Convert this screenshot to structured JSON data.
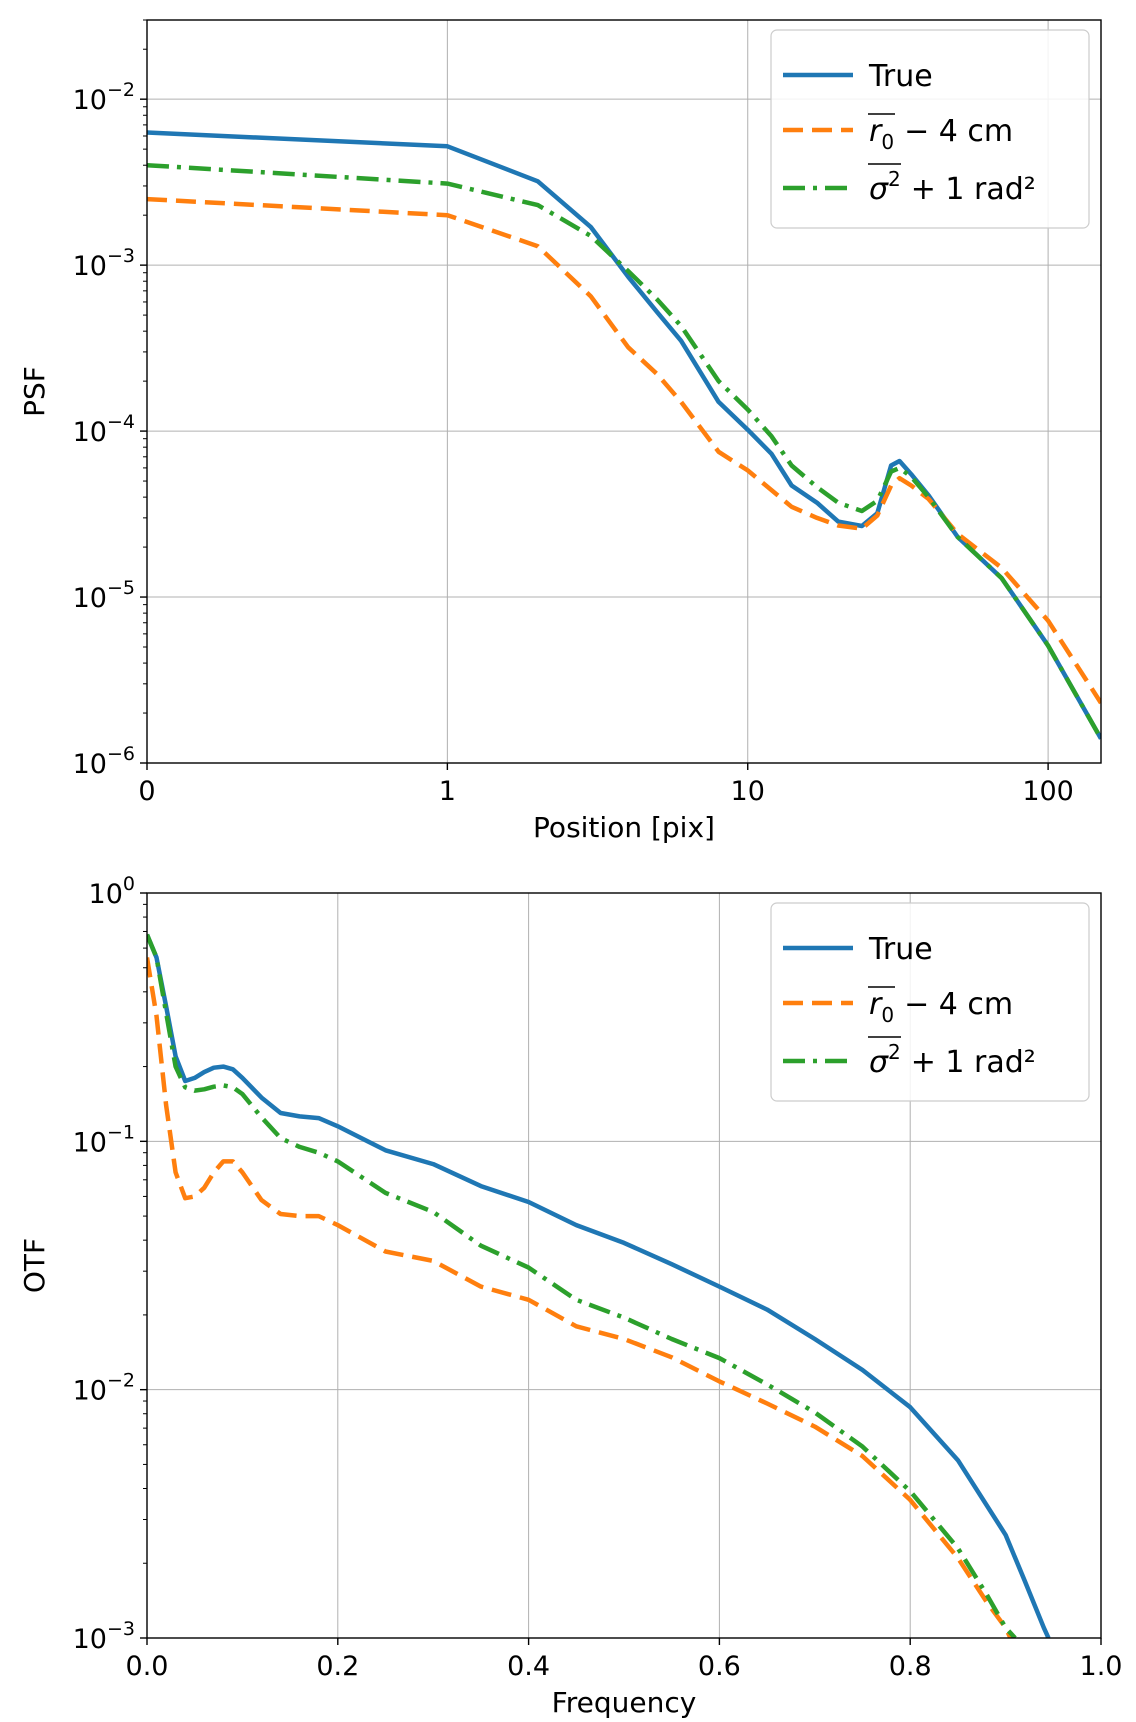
{
  "chart_data": [
    {
      "type": "line",
      "xscale": "symlog",
      "yscale": "log",
      "xlabel": "Position [pix]",
      "ylabel": "PSF",
      "xlim": [
        0,
        150
      ],
      "ylim": [
        1e-06,
        0.03
      ],
      "xticks": [
        {
          "value": 0,
          "label": "0"
        },
        {
          "value": 1,
          "label": "1"
        },
        {
          "value": 10,
          "label": "10"
        },
        {
          "value": 100,
          "label": "100"
        }
      ],
      "yticks": [
        {
          "value": 1e-06,
          "base": "10",
          "exp": "−6"
        },
        {
          "value": 1e-05,
          "base": "10",
          "exp": "−5"
        },
        {
          "value": 0.0001,
          "base": "10",
          "exp": "−4"
        },
        {
          "value": 0.001,
          "base": "10",
          "exp": "−3"
        },
        {
          "value": 0.01,
          "base": "10",
          "exp": "−2"
        }
      ],
      "grid": true,
      "legend_position": "top-right",
      "series": [
        {
          "name": "True",
          "color": "#1f77b4",
          "dash": "solid",
          "x": [
            0,
            1,
            2,
            3,
            4,
            5,
            6,
            8,
            10,
            12,
            14,
            17,
            20,
            24,
            27,
            30,
            32,
            35,
            40,
            50,
            70,
            100,
            150
          ],
          "y": [
            0.0063,
            0.0052,
            0.0032,
            0.0017,
            0.00085,
            0.00052,
            0.00035,
            0.00015,
            0.000102,
            7.3e-05,
            4.7e-05,
            3.7e-05,
            2.85e-05,
            2.68e-05,
            3.2e-05,
            6.2e-05,
            6.6e-05,
            5.5e-05,
            4.1e-05,
            2.3e-05,
            1.3e-05,
            5.1e-06,
            1.4e-06
          ]
        },
        {
          "name": "r0-4cm",
          "color": "#ff7f0e",
          "dash": "dashed",
          "x": [
            0,
            1,
            2,
            3,
            4,
            5,
            6,
            8,
            10,
            14,
            17,
            20,
            24,
            27,
            30,
            32,
            35,
            40,
            50,
            70,
            100,
            150
          ],
          "y": [
            0.0025,
            0.002,
            0.0013,
            0.00065,
            0.00032,
            0.00022,
            0.00015,
            7.5e-05,
            5.8e-05,
            3.5e-05,
            3e-05,
            2.7e-05,
            2.58e-05,
            3.1e-05,
            4.7e-05,
            5.2e-05,
            4.7e-05,
            3.9e-05,
            2.4e-05,
            1.5e-05,
            7.2e-06,
            2.3e-06
          ]
        },
        {
          "name": "sigma2+1rad2",
          "color": "#2ca02c",
          "dash": "dashdot",
          "x": [
            0,
            1,
            2,
            3,
            4,
            5,
            6,
            8,
            10,
            12,
            14,
            17,
            20,
            24,
            27,
            30,
            32,
            35,
            40,
            50,
            70,
            100,
            150
          ],
          "y": [
            0.004,
            0.0031,
            0.0023,
            0.0015,
            0.00092,
            0.00062,
            0.00043,
            0.0002,
            0.000135,
            9.3e-05,
            6.2e-05,
            4.6e-05,
            3.7e-05,
            3.3e-05,
            3.8e-05,
            5.7e-05,
            6e-05,
            5.3e-05,
            4e-05,
            2.3e-05,
            1.3e-05,
            5.1e-06,
            1.4e-06
          ]
        }
      ]
    },
    {
      "type": "line",
      "xscale": "linear",
      "yscale": "log",
      "xlabel": "Frequency",
      "ylabel": "OTF",
      "xlim": [
        0,
        1
      ],
      "ylim": [
        0.001,
        1
      ],
      "xticks": [
        {
          "value": 0,
          "label": "0.0"
        },
        {
          "value": 0.2,
          "label": "0.2"
        },
        {
          "value": 0.4,
          "label": "0.4"
        },
        {
          "value": 0.6,
          "label": "0.6"
        },
        {
          "value": 0.8,
          "label": "0.8"
        },
        {
          "value": 1,
          "label": "1.0"
        }
      ],
      "yticks": [
        {
          "value": 0.001,
          "base": "10",
          "exp": "−3"
        },
        {
          "value": 0.01,
          "base": "10",
          "exp": "−2"
        },
        {
          "value": 0.1,
          "base": "10",
          "exp": "−1"
        },
        {
          "value": 1,
          "base": "10",
          "exp": "0"
        }
      ],
      "grid": true,
      "legend_position": "top-right",
      "series": [
        {
          "name": "True",
          "color": "#1f77b4",
          "dash": "solid",
          "x": [
            0,
            0.01,
            0.02,
            0.03,
            0.04,
            0.05,
            0.06,
            0.07,
            0.08,
            0.09,
            0.1,
            0.12,
            0.14,
            0.16,
            0.18,
            0.2,
            0.25,
            0.3,
            0.35,
            0.4,
            0.45,
            0.5,
            0.55,
            0.6,
            0.65,
            0.7,
            0.75,
            0.8,
            0.85,
            0.9,
            0.92,
            0.94,
            0.945
          ],
          "y": [
            0.68,
            0.55,
            0.35,
            0.22,
            0.175,
            0.18,
            0.19,
            0.198,
            0.2,
            0.195,
            0.18,
            0.15,
            0.13,
            0.126,
            0.124,
            0.115,
            0.092,
            0.081,
            0.066,
            0.057,
            0.046,
            0.039,
            0.032,
            0.026,
            0.021,
            0.016,
            0.012,
            0.0085,
            0.0052,
            0.0026,
            0.0017,
            0.0011,
            0.001
          ]
        },
        {
          "name": "r0-4cm",
          "color": "#ff7f0e",
          "dash": "dashed",
          "x": [
            0,
            0.01,
            0.02,
            0.03,
            0.04,
            0.05,
            0.06,
            0.07,
            0.08,
            0.09,
            0.1,
            0.12,
            0.14,
            0.16,
            0.18,
            0.2,
            0.25,
            0.3,
            0.35,
            0.4,
            0.45,
            0.5,
            0.55,
            0.6,
            0.65,
            0.7,
            0.75,
            0.8,
            0.85,
            0.88,
            0.9,
            0.905
          ],
          "y": [
            0.55,
            0.32,
            0.14,
            0.075,
            0.059,
            0.06,
            0.065,
            0.075,
            0.083,
            0.083,
            0.075,
            0.058,
            0.051,
            0.05,
            0.05,
            0.046,
            0.036,
            0.033,
            0.026,
            0.023,
            0.018,
            0.016,
            0.0135,
            0.0108,
            0.0088,
            0.0071,
            0.0054,
            0.0036,
            0.0021,
            0.0014,
            0.0011,
            0.001
          ]
        },
        {
          "name": "sigma2+1rad2",
          "color": "#2ca02c",
          "dash": "dashdot",
          "x": [
            0,
            0.01,
            0.02,
            0.03,
            0.04,
            0.05,
            0.06,
            0.07,
            0.08,
            0.09,
            0.1,
            0.12,
            0.14,
            0.16,
            0.18,
            0.2,
            0.25,
            0.3,
            0.35,
            0.4,
            0.45,
            0.5,
            0.55,
            0.6,
            0.65,
            0.7,
            0.75,
            0.8,
            0.85,
            0.88,
            0.9,
            0.91
          ],
          "y": [
            0.68,
            0.55,
            0.33,
            0.2,
            0.165,
            0.16,
            0.162,
            0.166,
            0.168,
            0.165,
            0.155,
            0.125,
            0.103,
            0.095,
            0.09,
            0.083,
            0.062,
            0.052,
            0.038,
            0.031,
            0.023,
            0.0195,
            0.016,
            0.0134,
            0.0105,
            0.0081,
            0.0059,
            0.0039,
            0.0023,
            0.0015,
            0.0011,
            0.001
          ]
        }
      ]
    }
  ],
  "legend": {
    "true_label": "True",
    "r0_symbol": "r",
    "r0_subscript": "0",
    "r0_suffix": "− 4 cm",
    "sigma_symbol": "σ",
    "sigma_superscript": "2",
    "sigma_suffix": "+ 1 rad²"
  }
}
